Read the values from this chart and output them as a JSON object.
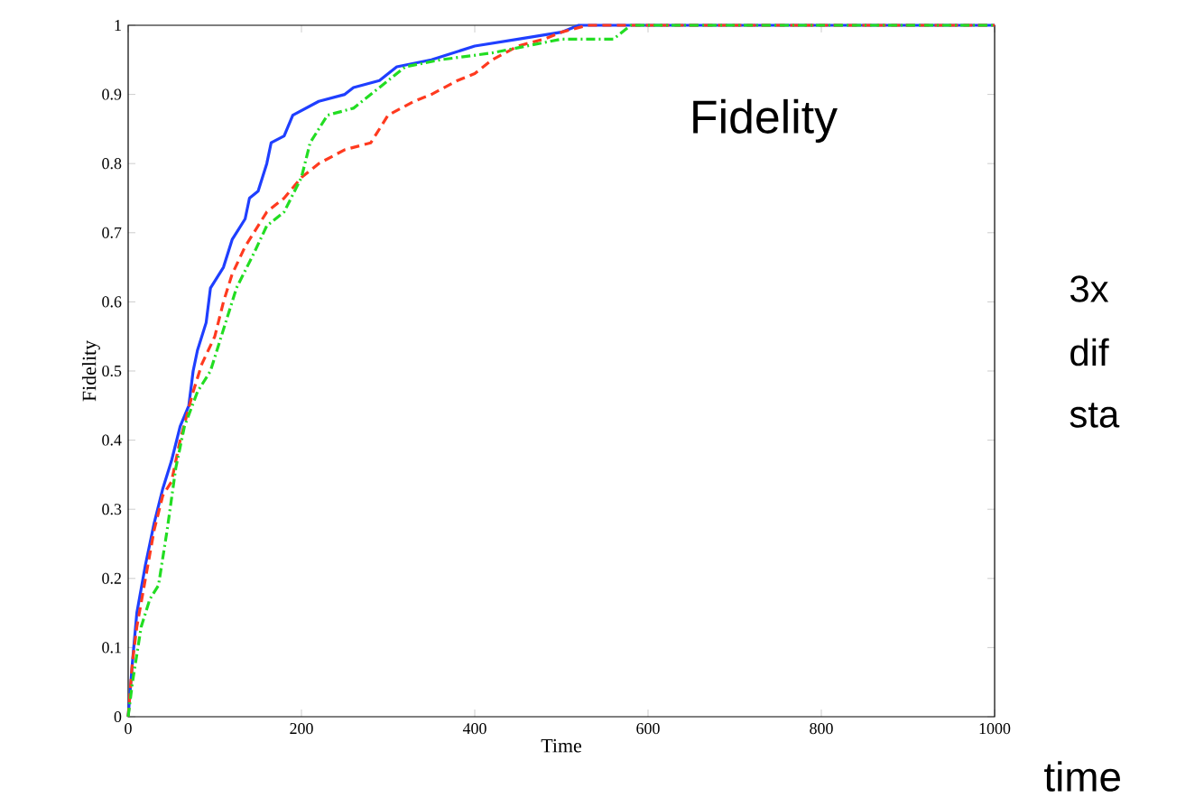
{
  "chart_data": {
    "type": "line",
    "xlabel": "Time",
    "ylabel": "Fidelity",
    "annotations": [
      "Fidelity",
      "3x",
      "dif",
      "sta",
      "time"
    ],
    "xlim": [
      0,
      1000
    ],
    "ylim": [
      0,
      1
    ],
    "xticks": [
      0,
      200,
      400,
      600,
      800,
      1000
    ],
    "yticks": [
      0,
      0.1,
      0.2,
      0.3,
      0.4,
      0.5,
      0.6,
      0.7,
      0.8,
      0.9,
      1
    ],
    "marker": "none",
    "series": [
      {
        "color": "#1f3fff",
        "line_style": "solid",
        "x": [
          0,
          5,
          10,
          20,
          30,
          40,
          50,
          60,
          70,
          75,
          80,
          90,
          95,
          110,
          120,
          135,
          140,
          150,
          160,
          165,
          180,
          190,
          220,
          250,
          260,
          290,
          310,
          350,
          400,
          450,
          500,
          520,
          1000
        ],
        "values": [
          0,
          0.08,
          0.15,
          0.22,
          0.28,
          0.33,
          0.37,
          0.42,
          0.45,
          0.5,
          0.53,
          0.57,
          0.62,
          0.65,
          0.69,
          0.72,
          0.75,
          0.76,
          0.8,
          0.83,
          0.84,
          0.87,
          0.89,
          0.9,
          0.91,
          0.92,
          0.94,
          0.95,
          0.97,
          0.98,
          0.99,
          1,
          1
        ]
      },
      {
        "color": "#ff3a1f",
        "line_style": "dashed",
        "x": [
          0,
          5,
          10,
          20,
          30,
          40,
          50,
          60,
          75,
          85,
          100,
          110,
          120,
          135,
          160,
          180,
          200,
          220,
          250,
          280,
          300,
          330,
          350,
          380,
          400,
          420,
          450,
          480,
          500,
          530,
          1000
        ],
        "values": [
          0,
          0.08,
          0.13,
          0.2,
          0.27,
          0.32,
          0.34,
          0.4,
          0.47,
          0.51,
          0.55,
          0.6,
          0.64,
          0.68,
          0.73,
          0.75,
          0.78,
          0.8,
          0.82,
          0.83,
          0.87,
          0.89,
          0.9,
          0.92,
          0.93,
          0.95,
          0.97,
          0.98,
          0.99,
          1,
          1
        ]
      },
      {
        "color": "#22dd22",
        "line_style": "dashdot",
        "x": [
          0,
          5,
          15,
          25,
          35,
          45,
          55,
          65,
          80,
          95,
          110,
          125,
          145,
          160,
          180,
          200,
          210,
          230,
          260,
          290,
          320,
          360,
          420,
          460,
          500,
          560,
          580,
          1000
        ],
        "values": [
          0,
          0.05,
          0.13,
          0.17,
          0.19,
          0.27,
          0.36,
          0.42,
          0.47,
          0.5,
          0.56,
          0.62,
          0.67,
          0.71,
          0.73,
          0.78,
          0.83,
          0.87,
          0.88,
          0.91,
          0.94,
          0.95,
          0.96,
          0.97,
          0.98,
          0.98,
          1,
          1
        ]
      }
    ]
  }
}
